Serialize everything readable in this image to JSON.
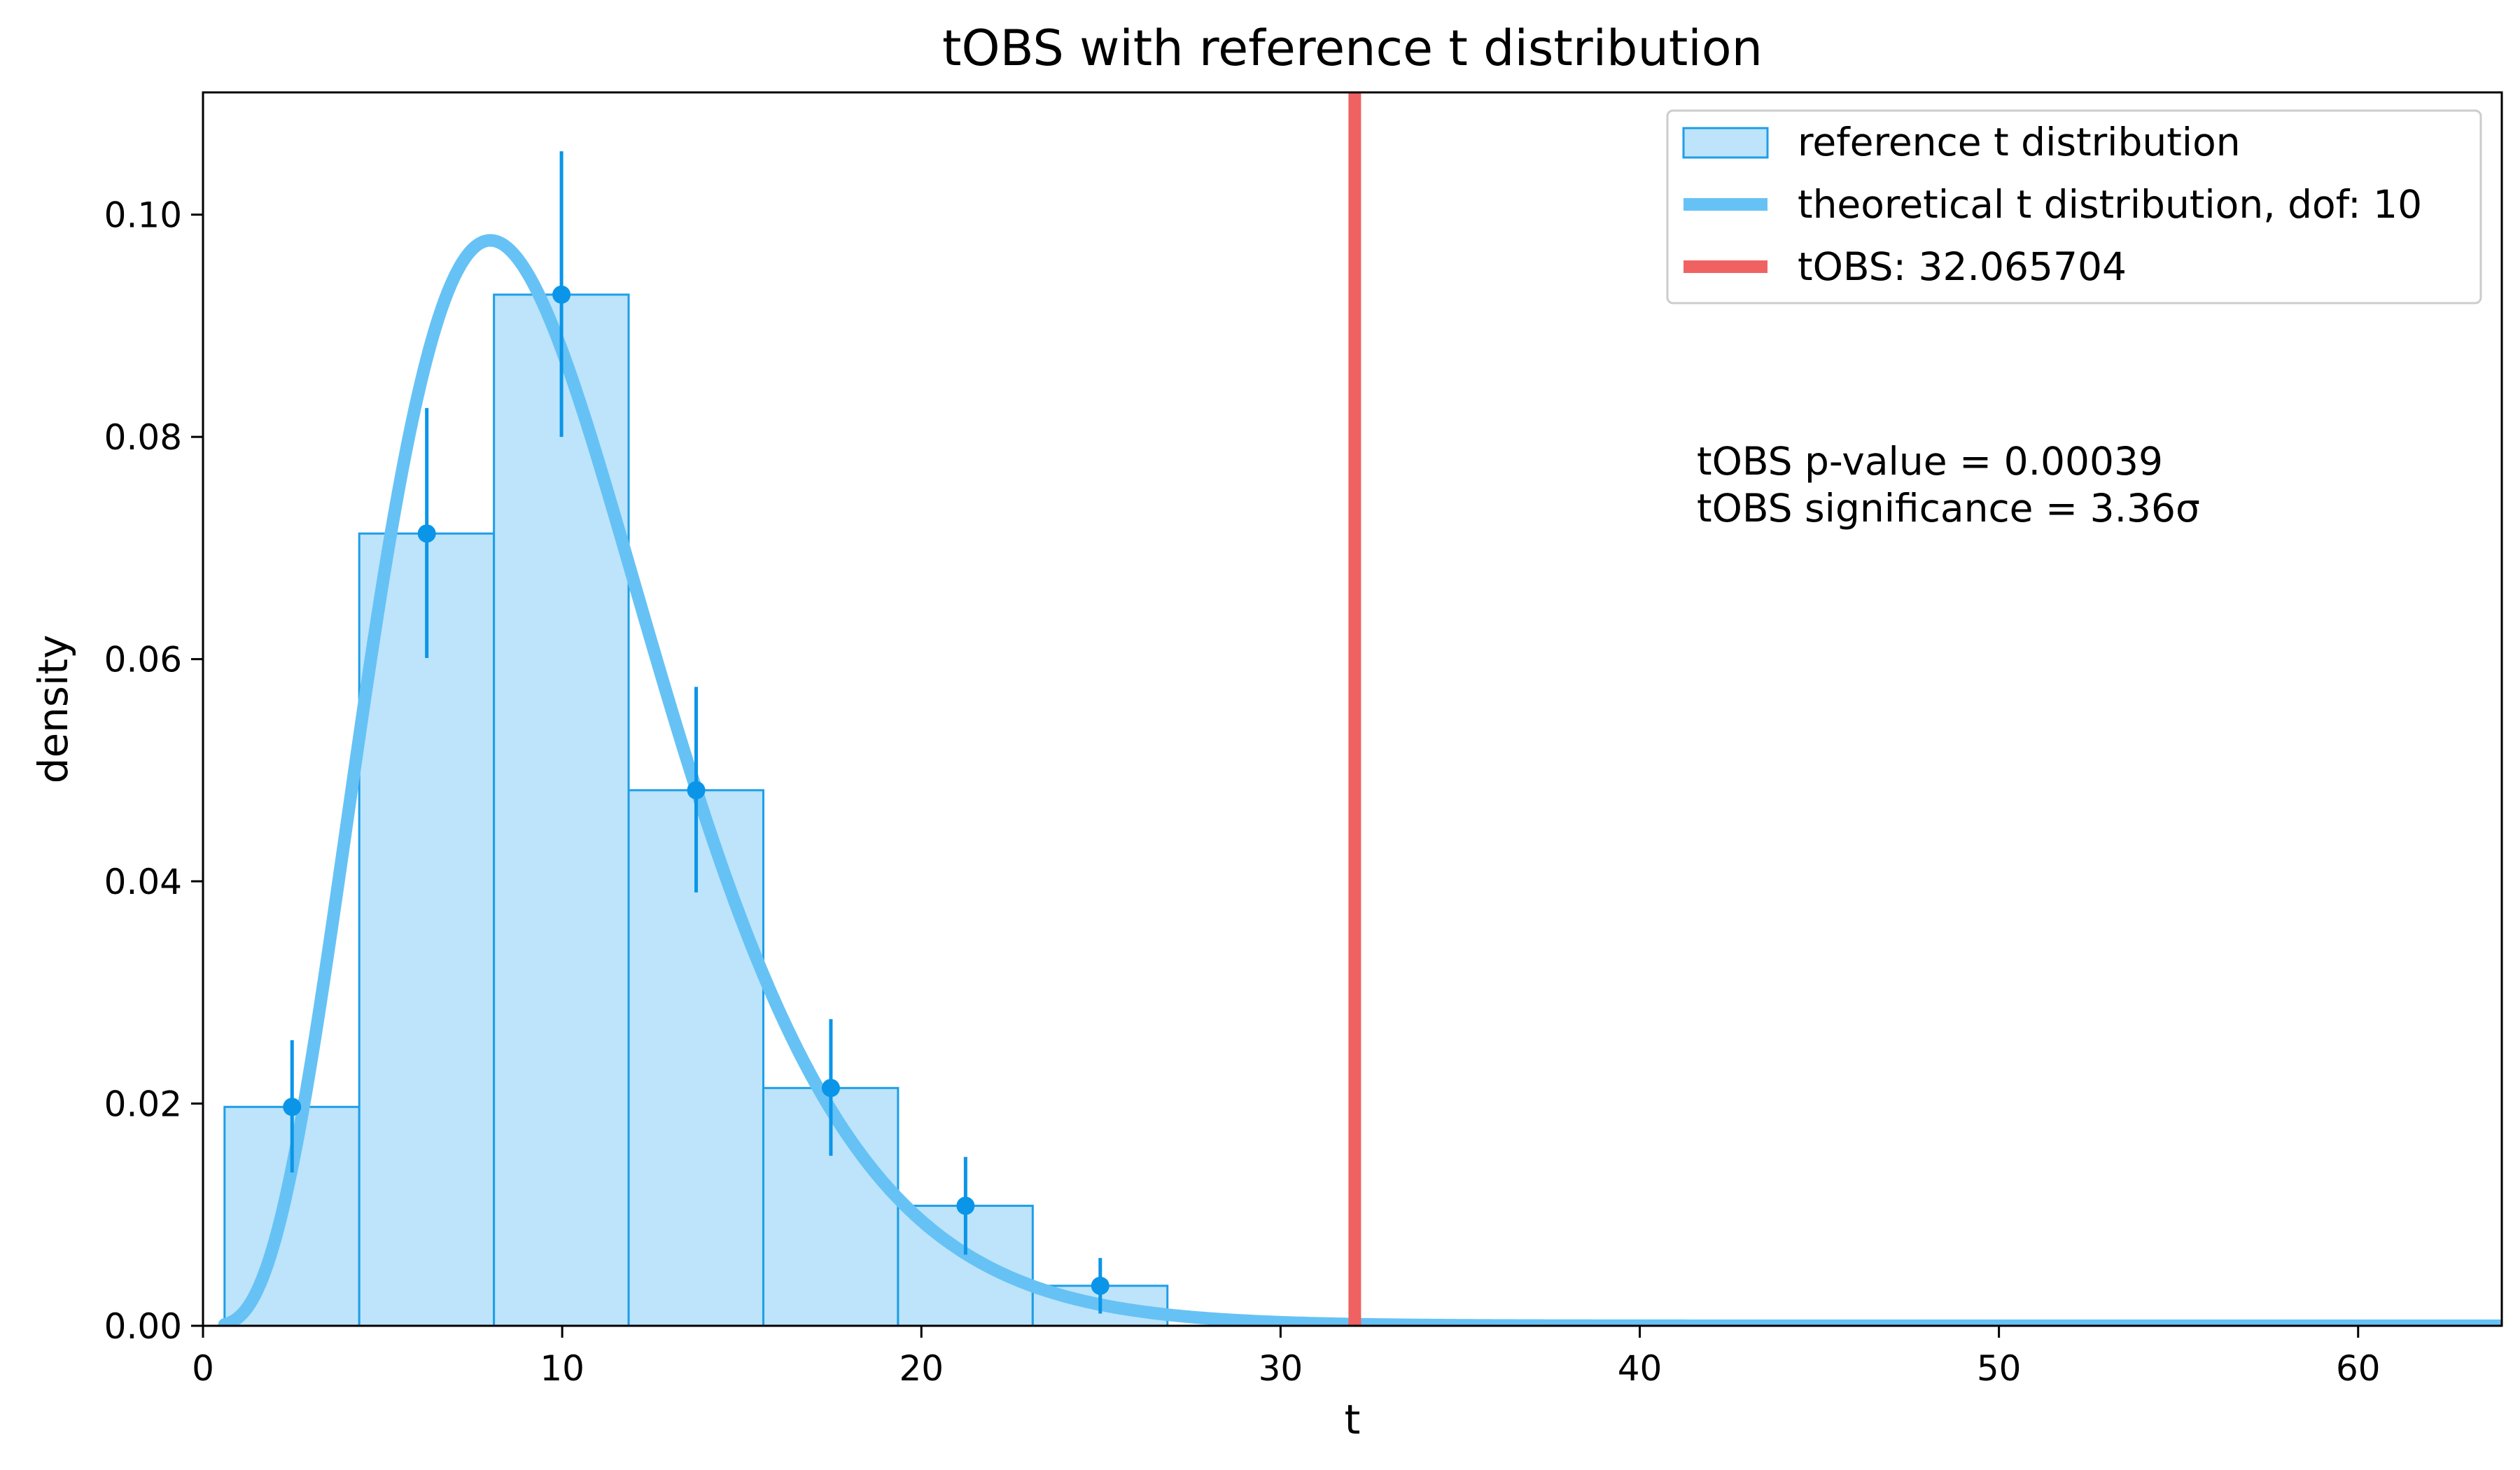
{
  "chart_data": {
    "type": "histogram",
    "title": "tOBS with reference t distribution",
    "xlabel": "t",
    "ylabel": "density",
    "xlim": [
      0,
      64
    ],
    "ylim": [
      0,
      0.111
    ],
    "x_ticks": [
      "0",
      "10",
      "20",
      "30",
      "40",
      "50",
      "60"
    ],
    "x_tick_values": [
      0,
      10,
      20,
      30,
      40,
      50,
      60
    ],
    "y_ticks": [
      "0.00",
      "0.02",
      "0.04",
      "0.06",
      "0.08",
      "0.10"
    ],
    "y_tick_values": [
      0.0,
      0.02,
      0.04,
      0.06,
      0.08,
      0.1
    ],
    "grid": false,
    "legend_position": "top-right",
    "histogram": {
      "name": "reference t distribution",
      "bin_edges": [
        0.6,
        4.35,
        8.1,
        11.85,
        15.6,
        19.35,
        23.1,
        26.85
      ],
      "densities": [
        0.0197,
        0.0713,
        0.0928,
        0.0482,
        0.0214,
        0.0108,
        0.0036
      ],
      "error_bars": [
        {
          "x": 2.48,
          "y": 0.0197,
          "low": 0.0138,
          "high": 0.0257
        },
        {
          "x": 6.23,
          "y": 0.0713,
          "low": 0.0601,
          "high": 0.0826
        },
        {
          "x": 9.98,
          "y": 0.0928,
          "low": 0.08,
          "high": 0.1057
        },
        {
          "x": 13.73,
          "y": 0.0482,
          "low": 0.039,
          "high": 0.0575
        },
        {
          "x": 17.48,
          "y": 0.0214,
          "low": 0.0153,
          "high": 0.0276
        },
        {
          "x": 21.23,
          "y": 0.0108,
          "low": 0.0064,
          "high": 0.0152
        },
        {
          "x": 24.98,
          "y": 0.0036,
          "low": 0.0011,
          "high": 0.0061
        }
      ],
      "fill_color": "#bde4fa",
      "edge_color": "#1f9ee8",
      "marker_color": "#0b95e8"
    },
    "theory_curve": {
      "name": "theoretical t distribution, dof: 10",
      "dof": 10,
      "color": "#66c2f5"
    },
    "observed": {
      "name": "tOBS: 32.065704",
      "value": 32.065704,
      "color": "#f06262"
    },
    "annotations": [
      "tOBS p-value = 0.00039",
      "tOBS significance = 3.36σ"
    ]
  }
}
